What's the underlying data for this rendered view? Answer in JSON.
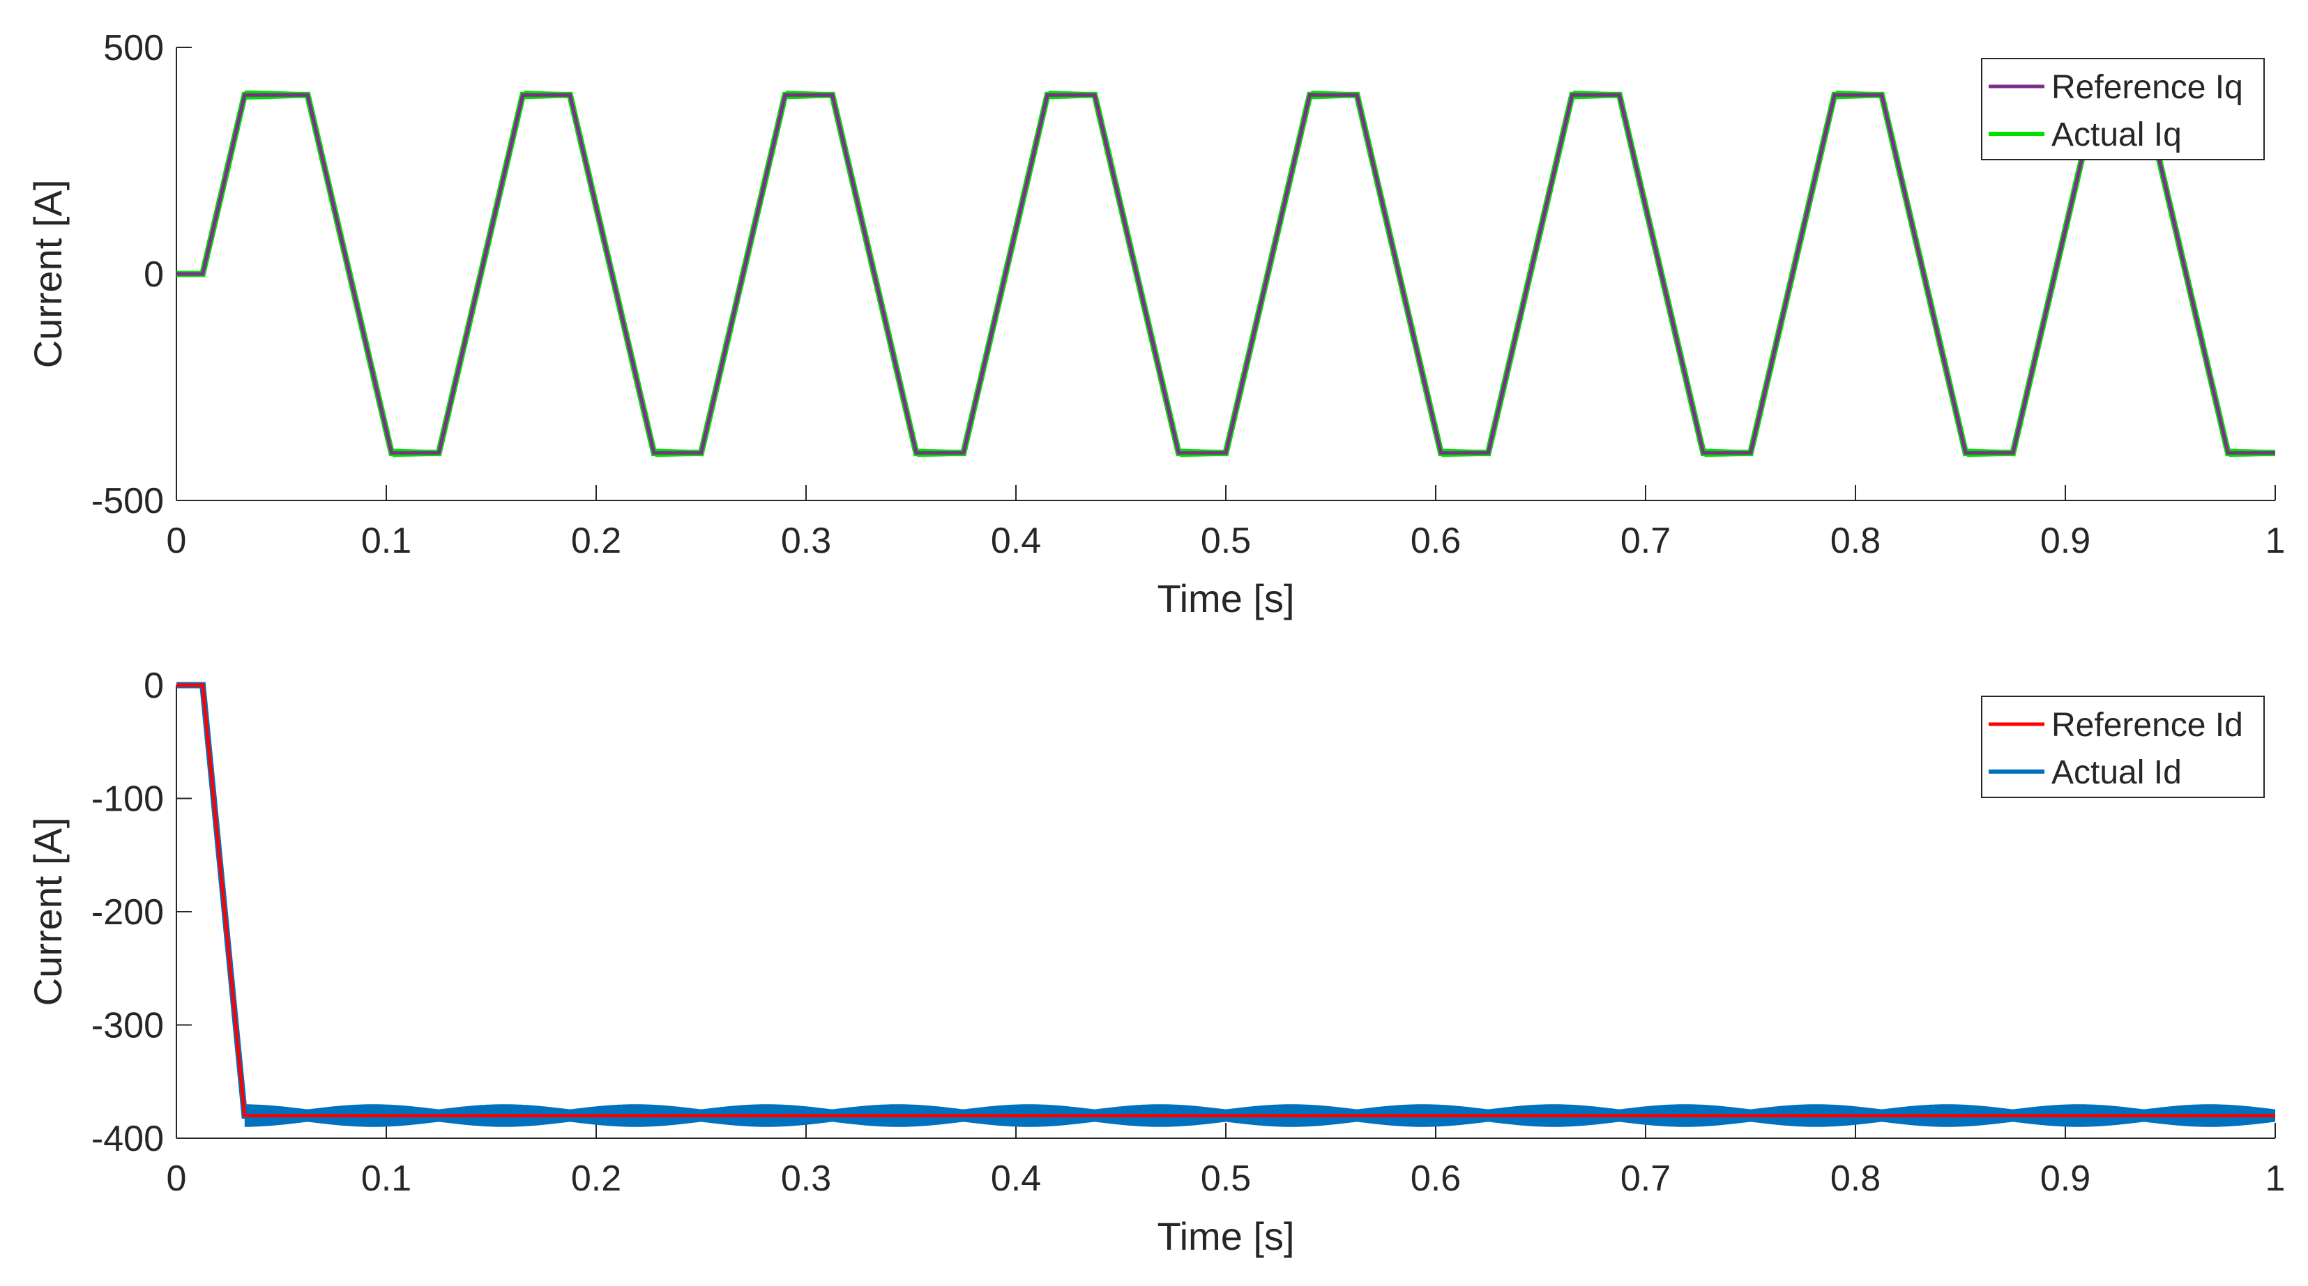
{
  "chart_data": [
    {
      "type": "line",
      "title": "",
      "xlabel": "Time [s]",
      "ylabel": "Current [A]",
      "xlim": [
        0,
        1
      ],
      "ylim": [
        -500,
        500
      ],
      "xticks": [
        0,
        0.1,
        0.2,
        0.3,
        0.4,
        0.5,
        0.6,
        0.7,
        0.8,
        0.9,
        1
      ],
      "xtick_labels": [
        "0",
        "0.1",
        "0.2",
        "0.3",
        "0.4",
        "0.5",
        "0.6",
        "0.7",
        "0.8",
        "0.9",
        "1"
      ],
      "yticks": [
        -500,
        0,
        500
      ],
      "ytick_labels": [
        "-500",
        "0",
        "500"
      ],
      "grid": false,
      "legend_position": "top-right",
      "series": [
        {
          "name": "Reference Iq",
          "color": "#7E2F8E",
          "x": [
            0,
            0.0125,
            0.0325,
            0.0625,
            0.1025,
            0.125,
            0.165,
            0.1875,
            0.2275,
            0.25,
            0.29,
            0.3125,
            0.3525,
            0.375,
            0.415,
            0.4375,
            0.4775,
            0.5,
            0.54,
            0.5625,
            0.6025,
            0.625,
            0.665,
            0.6875,
            0.7275,
            0.75,
            0.79,
            0.8125,
            0.8525,
            0.875,
            0.915,
            0.9375,
            0.9775,
            1.0
          ],
          "y": [
            0,
            0,
            395,
            395,
            -395,
            -395,
            395,
            395,
            -395,
            -395,
            395,
            395,
            -395,
            -395,
            395,
            395,
            -395,
            -395,
            395,
            395,
            -395,
            -395,
            395,
            395,
            -395,
            -395,
            395,
            395,
            -395,
            -395,
            395,
            395,
            -395,
            -395
          ]
        },
        {
          "name": "Actual Iq",
          "color": "#00E000",
          "x": [
            0,
            0.0125,
            0.0325,
            0.0625,
            0.1025,
            0.125,
            0.165,
            0.1875,
            0.2275,
            0.25,
            0.29,
            0.3125,
            0.3525,
            0.375,
            0.415,
            0.4375,
            0.4775,
            0.5,
            0.54,
            0.5625,
            0.6025,
            0.625,
            0.665,
            0.6875,
            0.7275,
            0.75,
            0.79,
            0.8125,
            0.8525,
            0.875,
            0.915,
            0.9375,
            0.9775,
            1.0
          ],
          "y": [
            0,
            0,
            395,
            395,
            -395,
            -395,
            395,
            395,
            -395,
            -395,
            395,
            395,
            -395,
            -395,
            395,
            395,
            -395,
            -395,
            395,
            395,
            -395,
            -395,
            395,
            395,
            -395,
            -395,
            395,
            395,
            -395,
            -395,
            395,
            395,
            -395,
            -395
          ],
          "ripple": 10
        }
      ]
    },
    {
      "type": "line",
      "title": "",
      "xlabel": "Time [s]",
      "ylabel": "Current [A]",
      "xlim": [
        0,
        1
      ],
      "ylim": [
        -400,
        0
      ],
      "xticks": [
        0,
        0.1,
        0.2,
        0.3,
        0.4,
        0.5,
        0.6,
        0.7,
        0.8,
        0.9,
        1
      ],
      "xtick_labels": [
        "0",
        "0.1",
        "0.2",
        "0.3",
        "0.4",
        "0.5",
        "0.6",
        "0.7",
        "0.8",
        "0.9",
        "1"
      ],
      "yticks": [
        -400,
        -300,
        -200,
        -100,
        0
      ],
      "ytick_labels": [
        "-400",
        "-300",
        "-200",
        "-100",
        "0"
      ],
      "grid": false,
      "legend_position": "top-right",
      "series": [
        {
          "name": "Reference Id",
          "color": "#FF0000",
          "x": [
            0,
            0.0125,
            0.0325,
            1.0
          ],
          "y": [
            0,
            0,
            -380,
            -380
          ]
        },
        {
          "name": "Actual Id",
          "color": "#0072BD",
          "x": [
            0,
            0.0125,
            0.0325,
            1.0
          ],
          "y": [
            0,
            0,
            -380,
            -380
          ],
          "ripple": 10
        }
      ]
    }
  ]
}
